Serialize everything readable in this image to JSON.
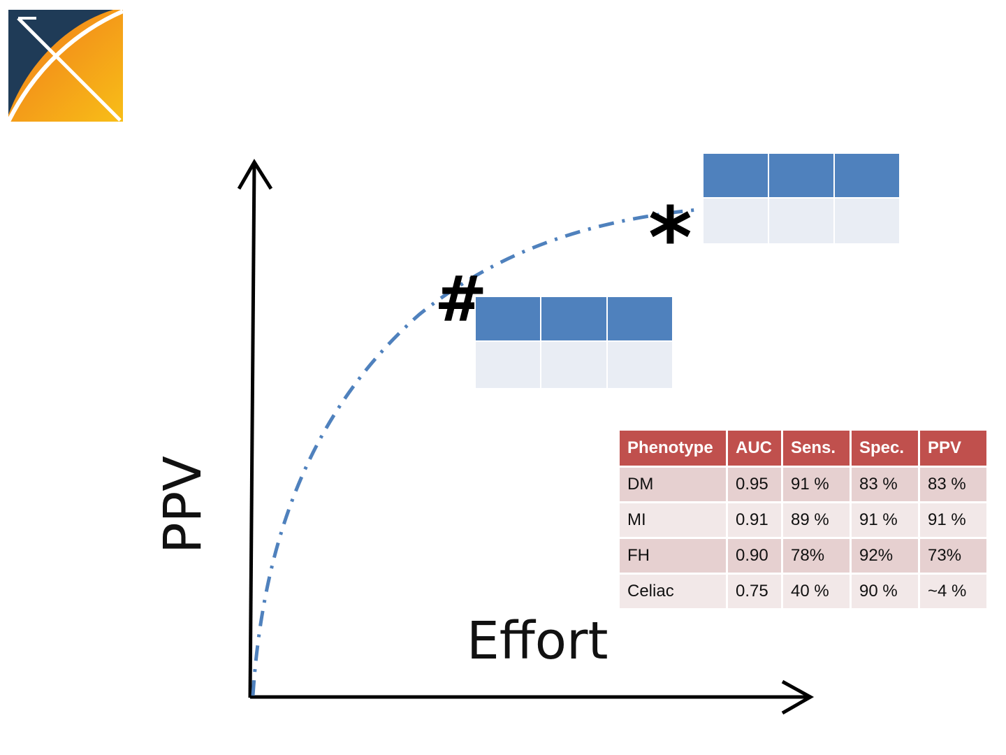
{
  "axes": {
    "y_label": "PPV",
    "x_label": "Effort"
  },
  "markers": {
    "hash": "#",
    "star": "*"
  },
  "curve": {
    "style": "dash-dot",
    "color": "#4f81bd"
  },
  "colors": {
    "logo_navy": "#1f3b57",
    "logo_orange": "#f08a1c",
    "logo_yellow": "#f8b818",
    "mini_header": "#4f81bd",
    "mini_body": "#e9edf4",
    "table_header": "#c0504d",
    "table_row_dark": "#e6d0d0",
    "table_row_light": "#f2e8e8"
  },
  "icons": {
    "logo": "x-logo-icon"
  },
  "performance_table": {
    "headers": [
      "Phenotype",
      "AUC",
      "Sens.",
      "Spec.",
      "PPV"
    ],
    "rows": [
      [
        "DM",
        "0.95",
        "91 %",
        "83 %",
        "83 %"
      ],
      [
        "MI",
        "0.91",
        "89 %",
        "91 %",
        "91 %"
      ],
      [
        "FH",
        "0.90",
        "78%",
        "92%",
        "73%"
      ],
      [
        "Celiac",
        "0.75",
        "40 %",
        "90 %",
        "~4 %"
      ]
    ]
  }
}
